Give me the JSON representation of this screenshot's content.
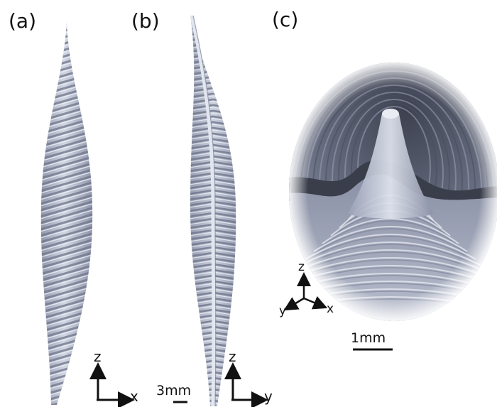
{
  "colors": {
    "structure_light": "#c4cada",
    "structure_mid": "#9aa1b6",
    "structure_dark": "#555a6b",
    "shell_dark": "#2f323b",
    "ink": "#111111"
  },
  "panels": {
    "a": {
      "label": "(a)"
    },
    "b": {
      "label": "(b)"
    },
    "c": {
      "label": "(c)"
    }
  },
  "axes": {
    "a": {
      "vertical": "z",
      "horizontal": "x"
    },
    "b": {
      "vertical": "z",
      "horizontal": "y"
    },
    "c": {
      "up": "z",
      "left": "y",
      "right": "x"
    }
  },
  "scale_bars": {
    "b": {
      "label": "3mm"
    },
    "c": {
      "label": "1mm"
    }
  }
}
